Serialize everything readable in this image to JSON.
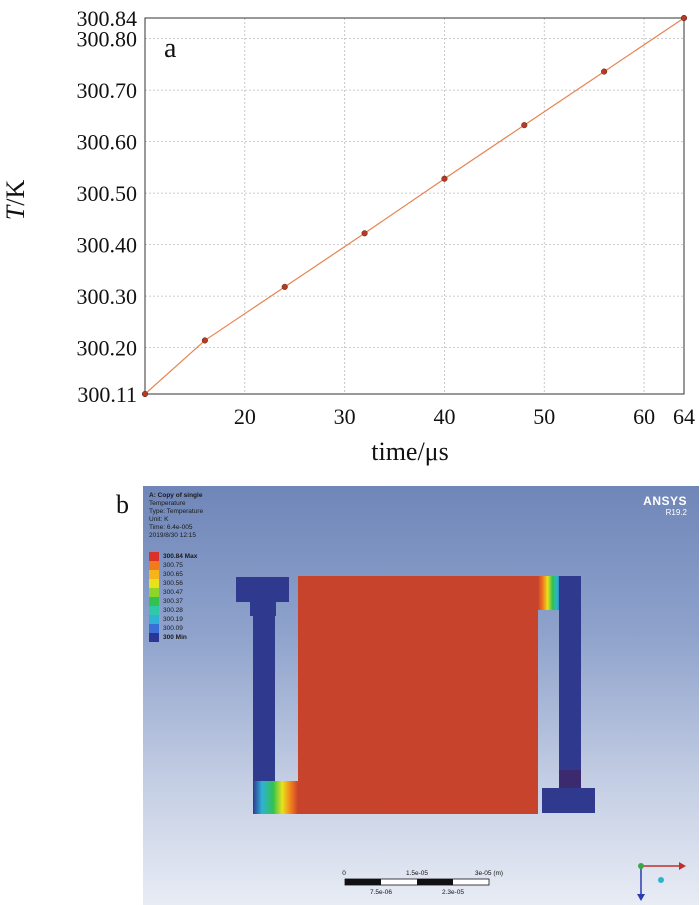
{
  "panel_a": {
    "label": "a",
    "chart_data": {
      "type": "line",
      "xlabel": "time/μs",
      "ylabel": "T/K",
      "xlim": [
        10,
        64
      ],
      "ylim": [
        300.11,
        300.84
      ],
      "x_ticks": [
        20,
        30,
        40,
        50,
        60,
        64
      ],
      "y_ticks": [
        "300.11",
        "300.20",
        "300.30",
        "300.40",
        "300.50",
        "300.60",
        "300.70",
        "300.80",
        "300.84"
      ],
      "grid": true,
      "series": [
        {
          "x": [
            10,
            16,
            24,
            32,
            40,
            48,
            56,
            64
          ],
          "y": [
            300.11,
            300.214,
            300.318,
            300.422,
            300.528,
            300.632,
            300.736,
            300.84
          ],
          "color": "#e8834f",
          "marker_color": "#b73a24"
        }
      ]
    }
  },
  "panel_b": {
    "label": "b",
    "info": {
      "title": "A: Copy of single",
      "line1": "Temperature",
      "line2": "Type: Temperature",
      "line3": "Unit: K",
      "line4": "Time: 6.4e-005",
      "line5": "2019/8/30 12:15"
    },
    "legend": [
      {
        "label": "300.84 Max",
        "color": "#d8322a",
        "bold": true
      },
      {
        "label": "300.75",
        "color": "#f07a1c"
      },
      {
        "label": "300.65",
        "color": "#f5b51a"
      },
      {
        "label": "300.56",
        "color": "#e8e21c"
      },
      {
        "label": "300.47",
        "color": "#8ed42a"
      },
      {
        "label": "300.37",
        "color": "#31c24f"
      },
      {
        "label": "300.28",
        "color": "#2ec9a8"
      },
      {
        "label": "300.19",
        "color": "#2fb2d6"
      },
      {
        "label": "300.09",
        "color": "#3a6fd6"
      },
      {
        "label": "300 Min",
        "color": "#2b3594",
        "bold": true
      }
    ],
    "brand": "ANSYS",
    "version": "R19.2",
    "scale": {
      "top_labels": [
        "0",
        "1.5e-05",
        "3e-05 (m)"
      ],
      "bottom_labels": [
        "7.5e-06",
        "2.3e-05"
      ]
    },
    "colors": {
      "hot": "#c8432c",
      "cold": "#2f3a8f"
    }
  }
}
